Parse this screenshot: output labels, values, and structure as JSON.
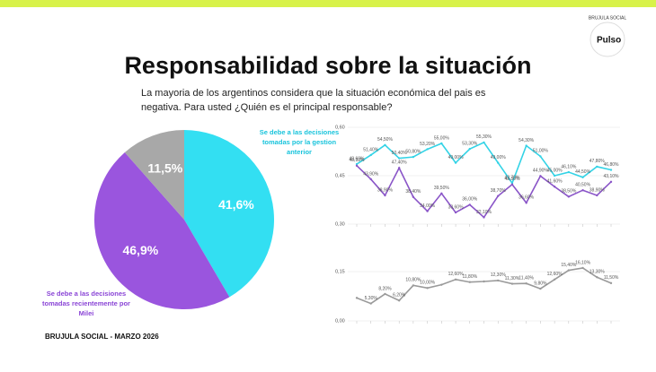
{
  "page": {
    "title": "Responsabilidad sobre la situación",
    "subtitle": [
      "La mayoria de los argentinos considera que la situación económica del pais es",
      "negativa. Para usted ¿Quién es el principal responsable?"
    ],
    "footer": "BRUJULA SOCIAL - MARZO 2026",
    "logo": "Pulso",
    "logo_ring": "BRUJULA SOCIAL"
  },
  "chart_data": [
    {
      "type": "pie",
      "categories": [
        "Se debe a las decisiones tomadas por la gestion anterior",
        "Se debe a las decisiones tomadas recientemente por Milei",
        null
      ],
      "values": [
        41.6,
        46.9,
        11.5
      ],
      "value_labels": [
        "41,6%",
        "46,9%",
        "11,5%"
      ],
      "colors": [
        "#33dff2",
        "#9a55de",
        "#a8a8a8"
      ],
      "annotations": [
        [
          "Se debe a las decisiones",
          "tomadas por la gestion",
          "anterior"
        ],
        [
          "Se debe a las decisiones",
          "tomadas recientemente por",
          "Milei"
        ]
      ]
    },
    {
      "type": "line",
      "categories": [
        null,
        null,
        null,
        null,
        null,
        null,
        null,
        null,
        null,
        null,
        null,
        null,
        null,
        null,
        null,
        null,
        null,
        null,
        null
      ],
      "ylim": [
        0.3,
        0.6
      ],
      "yticks": [
        {
          "value": 0.3,
          "label": "0,30"
        },
        {
          "value": 0.45,
          "label": "0,45"
        },
        {
          "value": 0.6,
          "label": "0,60"
        }
      ],
      "series": [
        {
          "color": "#33d3e6",
          "values": [
            0.486,
            0.514,
            0.545,
            0.504,
            0.508,
            0.532,
            0.55,
            0.49,
            0.533,
            0.553,
            0.49,
            0.427,
            0.543,
            0.51,
            0.45,
            0.461,
            0.445,
            0.478,
            0.468
          ],
          "value_labels": [
            "48,60%",
            "51,40%",
            "54,50%",
            "50,40%",
            "50,80%",
            "53,20%",
            "55,00%",
            "49,00%",
            "53,30%",
            "55,30%",
            "49,00%",
            "42,70%",
            "54,30%",
            "51,00%",
            "45,00%",
            "46,10%",
            "44,50%",
            "47,80%",
            "46,80%"
          ]
        },
        {
          "color": "#8a55c8",
          "values": [
            0.481,
            0.439,
            0.389,
            0.474,
            0.384,
            0.34,
            0.395,
            0.336,
            0.36,
            0.321,
            0.387,
            0.423,
            0.366,
            0.449,
            0.416,
            0.385,
            0.405,
            0.389,
            0.431
          ],
          "value_labels": [
            "48,10%",
            "43,90%",
            "38,90%",
            "47,40%",
            "38,40%",
            "34,00%",
            "39,50%",
            "33,60%",
            "36,00%",
            "32,10%",
            "38,70%",
            "42,30%",
            "36,60%",
            "44,90%",
            "41,60%",
            "38,50%",
            "40,50%",
            "38,90%",
            "43,10%"
          ]
        }
      ]
    },
    {
      "type": "line",
      "categories": [
        null,
        null,
        null,
        null,
        null,
        null,
        null,
        null,
        null,
        null,
        null,
        null,
        null,
        null,
        null,
        null,
        null,
        null,
        null
      ],
      "ylim": [
        0,
        0.18
      ],
      "yticks": [
        {
          "value": 0,
          "label": "0,00"
        },
        {
          "value": 0.15,
          "label": "0,15"
        }
      ],
      "series": [
        {
          "color": "#9a9a9a",
          "values": [
            0.07,
            0.053,
            0.082,
            0.062,
            0.108,
            0.1,
            0.11,
            0.126,
            0.118,
            0.12,
            0.123,
            0.113,
            0.114,
            0.098,
            0.126,
            0.154,
            0.161,
            0.133,
            0.115
          ],
          "value_labels": [
            null,
            "5,30%",
            "8,20%",
            "6,20%",
            "10,80%",
            "10,00%",
            null,
            "12,60%",
            "11,80%",
            null,
            "12,30%",
            "11,30%",
            "11,40%",
            "9,80%",
            "12,60%",
            "15,40%",
            "16,10%",
            "13,30%",
            "11,50%"
          ]
        }
      ]
    }
  ]
}
